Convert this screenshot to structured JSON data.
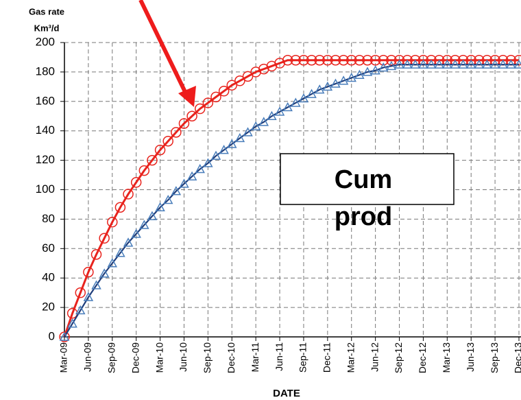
{
  "chart_data": {
    "type": "line",
    "y_label": [
      "Gas rate",
      "Km³/d"
    ],
    "x_label": "DATE",
    "annotation": [
      "Cum",
      "prod"
    ],
    "categories": [
      "Mar-09",
      null,
      null,
      "Jun-09",
      null,
      null,
      "Sep-09",
      null,
      null,
      "Dec-09",
      null,
      null,
      "Mar-10",
      null,
      null,
      "Jun-10",
      null,
      null,
      "Sep-10",
      null,
      null,
      "Dec-10",
      null,
      null,
      "Mar-11",
      null,
      null,
      "Jun-11",
      null,
      null,
      "Sep-11",
      null,
      null,
      "Dec-11",
      null,
      null,
      "Mar-12",
      null,
      null,
      "Jun-12",
      null,
      null,
      "Sep-12",
      null,
      null,
      "Dec-12",
      null,
      null,
      "Mar-13",
      null,
      null,
      "Jun-13",
      null,
      null,
      "Sep-13",
      null,
      null,
      "Dec-13"
    ],
    "series": [
      {
        "color": "#e8231d",
        "marker": "circle",
        "line_color": "#e8231d",
        "values": [
          0,
          16,
          30,
          44,
          56,
          67,
          78,
          88,
          97,
          105,
          113,
          120,
          127,
          133,
          139,
          145,
          150,
          155,
          159,
          163,
          167,
          171,
          174,
          177,
          180,
          182,
          184,
          186,
          188,
          188,
          188,
          188,
          188,
          188,
          188,
          188,
          188,
          188,
          188,
          188,
          188,
          188,
          188,
          188,
          188,
          188,
          188,
          188,
          188,
          188,
          188,
          188,
          188,
          188,
          188,
          188,
          188,
          188
        ]
      },
      {
        "color": "#4a7ebb",
        "marker": "triangle",
        "line_color": "#1f3d7a",
        "values": [
          0,
          9,
          18,
          27,
          35,
          43,
          50,
          57,
          64,
          70,
          76,
          82,
          88,
          93,
          99,
          104,
          109,
          114,
          118,
          123,
          127,
          131,
          135,
          139,
          143,
          146,
          150,
          153,
          156,
          159,
          162,
          165,
          168,
          170,
          172,
          174,
          176,
          178,
          180,
          181,
          183,
          184,
          185,
          185,
          185,
          185,
          185,
          185,
          185,
          185,
          185,
          185,
          185,
          185,
          185,
          185,
          185,
          185
        ]
      }
    ],
    "ylim": [
      0,
      200
    ],
    "yticks": [
      0,
      20,
      40,
      60,
      80,
      100,
      120,
      140,
      160,
      180,
      200
    ],
    "grid": true
  }
}
